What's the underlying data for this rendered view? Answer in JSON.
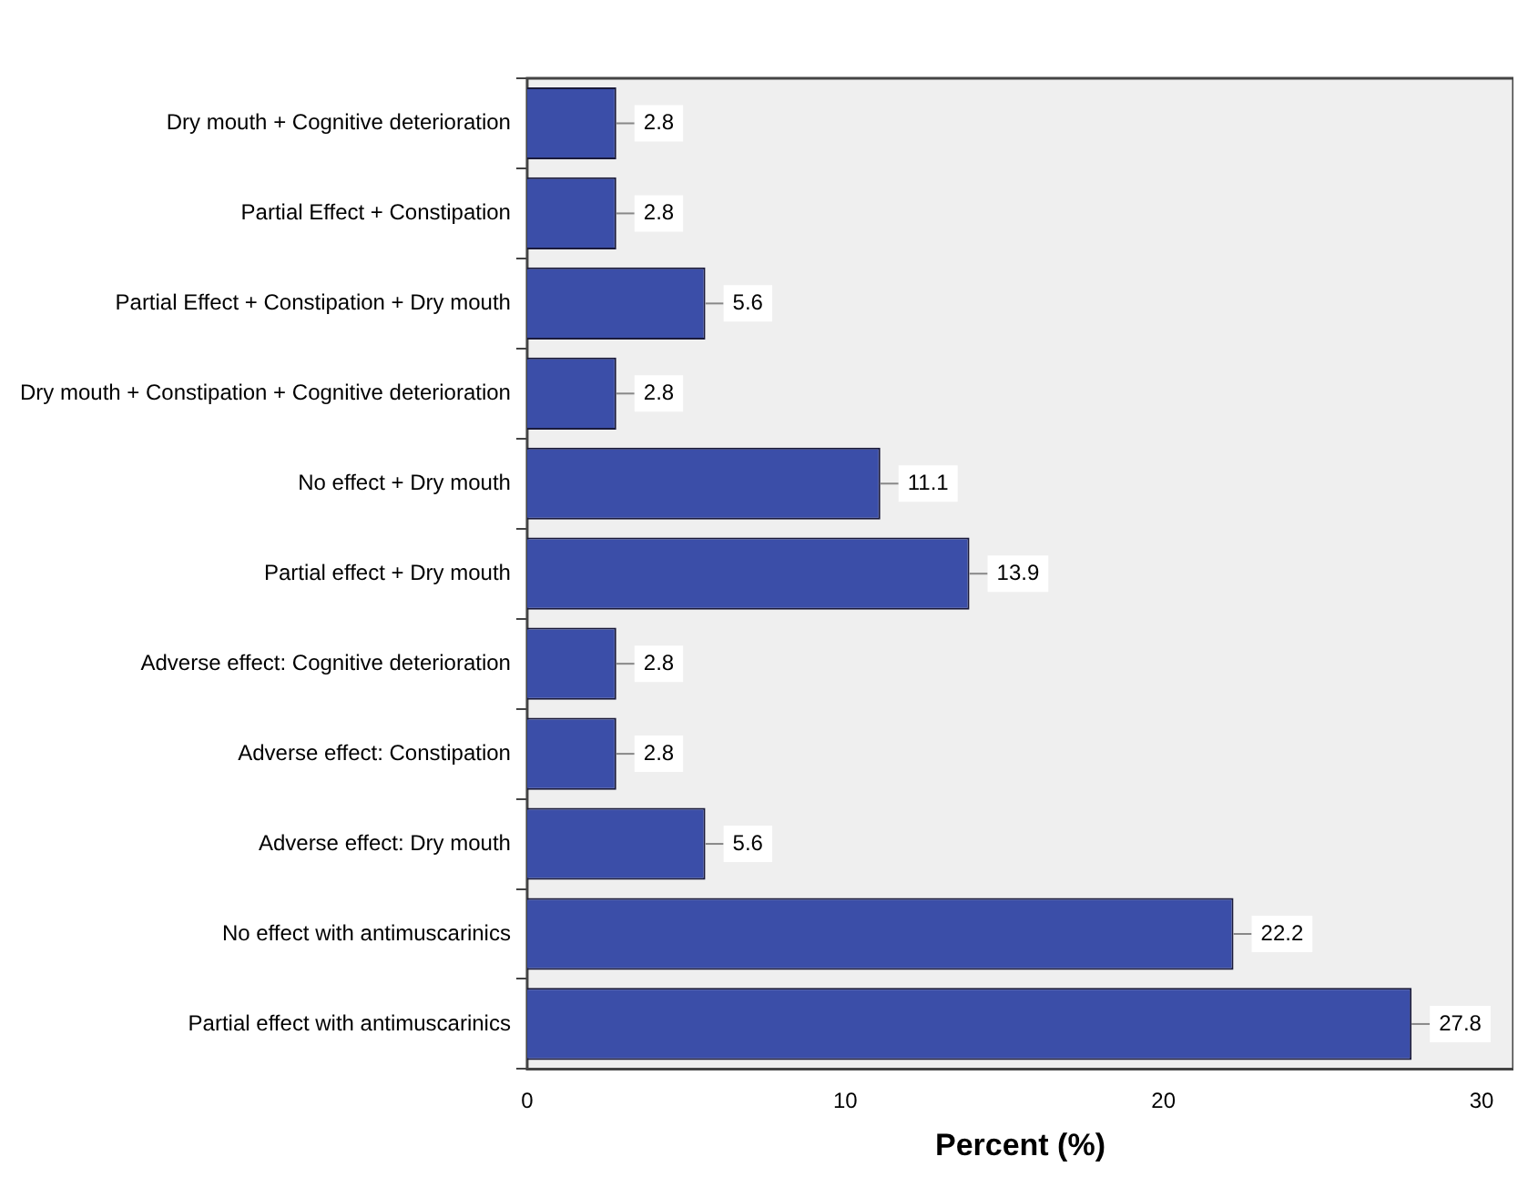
{
  "chart_data": {
    "type": "bar",
    "orientation": "horizontal",
    "xlabel": "Percent (%)",
    "categories": [
      "Dry mouth + Cognitive deterioration",
      "Partial Effect + Constipation",
      "Partial Effect + Constipation + Dry mouth",
      "Dry mouth + Constipation + Cognitive deterioration",
      "No effect + Dry mouth",
      "Partial effect + Dry mouth",
      "Adverse effect: Cognitive deterioration",
      "Adverse effect: Constipation",
      "Adverse effect: Dry mouth",
      "No effect with antimuscarinics",
      "Partial effect with antimuscarinics"
    ],
    "values": [
      2.8,
      2.8,
      5.6,
      2.8,
      11.1,
      13.9,
      2.8,
      2.8,
      5.6,
      22.2,
      27.8
    ],
    "color": "#3b4ea8",
    "xlim": [
      0,
      31
    ],
    "xticks": [
      0,
      10,
      20,
      30
    ],
    "data_labels": true,
    "grid": false,
    "legend": false
  }
}
